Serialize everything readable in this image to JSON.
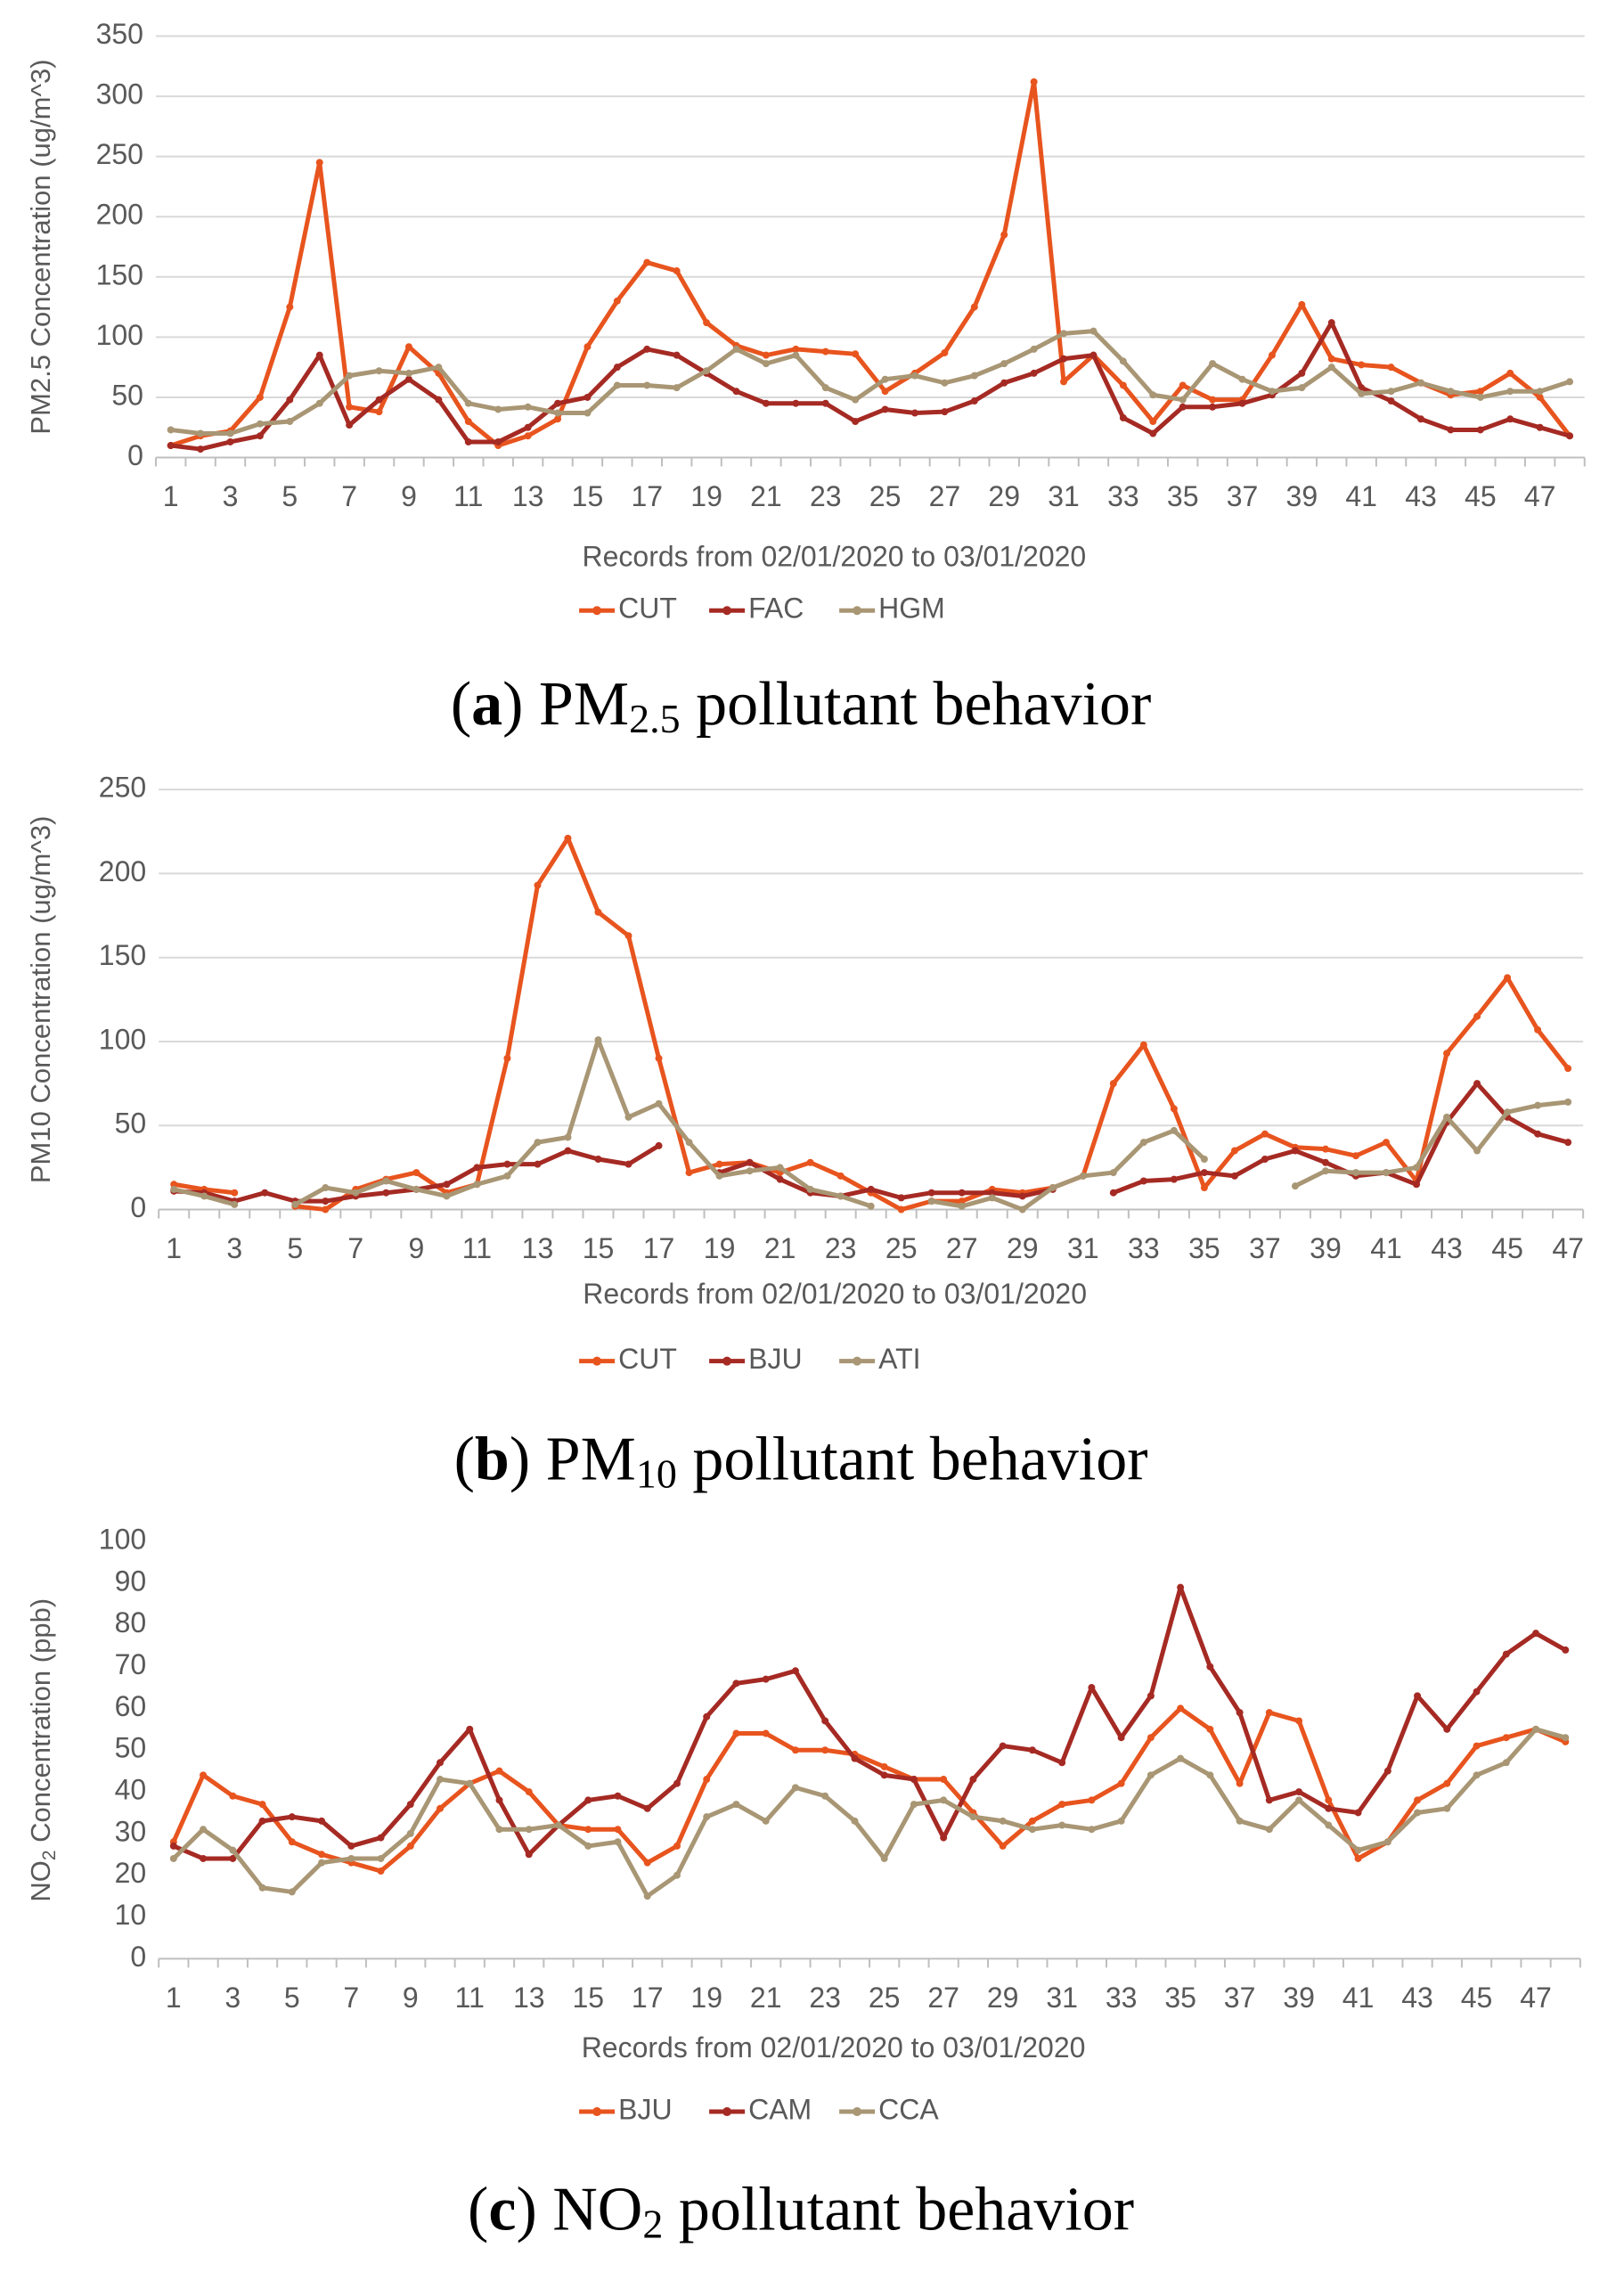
{
  "chart_data": [
    {
      "type": "line",
      "caption": [
        "(",
        "a",
        ") PM",
        "2.5",
        " pollutant behavior"
      ],
      "y_label": [
        "PM2.5 Concentration (ug/m^3)"
      ],
      "x_label": "Records from 02/01/2020 to 03/01/2020",
      "categories": [
        1,
        null,
        3,
        null,
        5,
        null,
        7,
        null,
        9,
        null,
        11,
        null,
        13,
        null,
        15,
        null,
        17,
        null,
        19,
        null,
        21,
        null,
        23,
        null,
        25,
        null,
        27,
        null,
        29,
        null,
        31,
        null,
        33,
        null,
        35,
        null,
        37,
        null,
        39,
        null,
        41,
        null,
        43,
        null,
        45,
        null,
        47,
        null
      ],
      "ylim": [
        0,
        350
      ],
      "yticks": [
        0,
        50,
        100,
        150,
        200,
        250,
        300,
        350
      ],
      "grid": true,
      "series": [
        {
          "name": "CUT",
          "color": "#e8541e",
          "values": [
            10,
            18,
            22,
            50,
            125,
            245,
            42,
            38,
            92,
            70,
            30,
            10,
            18,
            32,
            92,
            130,
            162,
            155,
            112,
            93,
            85,
            90,
            88,
            86,
            55,
            70,
            87,
            125,
            185,
            312,
            63,
            85,
            60,
            30,
            60,
            48,
            48,
            85,
            127,
            82,
            77,
            75,
            62,
            52,
            55,
            70,
            50,
            18
          ]
        },
        {
          "name": "FAC",
          "color": "#a52a23",
          "values": [
            10,
            7,
            13,
            18,
            48,
            85,
            27,
            48,
            65,
            48,
            13,
            13,
            25,
            45,
            50,
            75,
            90,
            85,
            70,
            55,
            45,
            45,
            45,
            30,
            40,
            37,
            38,
            47,
            62,
            70,
            82,
            85,
            33,
            20,
            42,
            42,
            45,
            52,
            70,
            112,
            58,
            47,
            32,
            23,
            23,
            32,
            25,
            18
          ]
        },
        {
          "name": "HGM",
          "color": "#a89674",
          "values": [
            23,
            20,
            20,
            28,
            30,
            45,
            68,
            72,
            70,
            75,
            45,
            40,
            42,
            37,
            37,
            60,
            60,
            58,
            72,
            90,
            78,
            85,
            58,
            48,
            65,
            68,
            62,
            68,
            78,
            90,
            103,
            105,
            80,
            52,
            48,
            78,
            65,
            55,
            58,
            75,
            53,
            55,
            62,
            55,
            50,
            55,
            55,
            63
          ]
        }
      ]
    },
    {
      "type": "line",
      "caption": [
        "(",
        "b",
        ") PM",
        "10",
        " pollutant behavior"
      ],
      "y_label": [
        "PM10 Concentration (ug/m^3)"
      ],
      "x_label": "Records from 02/01/2020 to 03/01/2020",
      "categories": [
        1,
        null,
        3,
        null,
        5,
        null,
        7,
        null,
        9,
        null,
        11,
        null,
        13,
        null,
        15,
        null,
        17,
        null,
        19,
        null,
        21,
        null,
        23,
        null,
        25,
        null,
        27,
        null,
        29,
        null,
        31,
        null,
        33,
        null,
        35,
        null,
        37,
        null,
        39,
        null,
        41,
        null,
        43,
        null,
        45,
        null,
        47
      ],
      "ylim": [
        0,
        250
      ],
      "yticks": [
        0,
        50,
        100,
        150,
        200,
        250
      ],
      "grid": true,
      "series": [
        {
          "name": "CUT",
          "color": "#e8541e",
          "values": [
            15,
            12,
            10,
            null,
            2,
            0,
            12,
            18,
            22,
            10,
            15,
            90,
            193,
            221,
            177,
            163,
            90,
            22,
            27,
            28,
            22,
            28,
            20,
            10,
            0,
            5,
            5,
            12,
            10,
            13,
            20,
            75,
            98,
            60,
            13,
            35,
            45,
            37,
            36,
            32,
            40,
            17,
            93,
            115,
            138,
            107,
            84
          ]
        },
        {
          "name": "BJU",
          "color": "#a52a23",
          "values": [
            11,
            10,
            5,
            10,
            5,
            5,
            8,
            10,
            12,
            15,
            25,
            27,
            27,
            35,
            30,
            27,
            38,
            null,
            22,
            28,
            18,
            10,
            8,
            12,
            7,
            10,
            10,
            10,
            8,
            12,
            null,
            10,
            17,
            18,
            22,
            20,
            30,
            35,
            28,
            20,
            22,
            15,
            52,
            75,
            55,
            45,
            40
          ]
        },
        {
          "name": "ATI",
          "color": "#a89674",
          "values": [
            12,
            8,
            3,
            null,
            3,
            13,
            10,
            17,
            12,
            8,
            15,
            20,
            40,
            43,
            101,
            55,
            63,
            40,
            20,
            23,
            25,
            12,
            8,
            2,
            null,
            5,
            2,
            7,
            0,
            13,
            20,
            22,
            40,
            47,
            30,
            null,
            null,
            14,
            23,
            22,
            22,
            25,
            55,
            35,
            58,
            62,
            64
          ]
        }
      ]
    },
    {
      "type": "line",
      "caption": [
        "(",
        "c",
        ") NO",
        "2",
        " pollutant behavior"
      ],
      "y_label": [
        "NO",
        "2",
        " Concentration (ppb)"
      ],
      "x_label": "Records from 02/01/2020 to 03/01/2020",
      "categories": [
        1,
        null,
        3,
        null,
        5,
        null,
        7,
        null,
        9,
        null,
        11,
        null,
        13,
        null,
        15,
        null,
        17,
        null,
        19,
        null,
        21,
        null,
        23,
        null,
        25,
        null,
        27,
        null,
        29,
        null,
        31,
        null,
        33,
        null,
        35,
        null,
        37,
        null,
        39,
        null,
        41,
        null,
        43,
        null,
        45,
        null,
        47,
        null
      ],
      "ylim": [
        0,
        100
      ],
      "yticks": [
        0,
        10,
        20,
        30,
        40,
        50,
        60,
        70,
        80,
        90,
        100
      ],
      "grid": false,
      "series": [
        {
          "name": "BJU",
          "color": "#e8541e",
          "values": [
            28,
            44,
            39,
            37,
            28,
            25,
            23,
            21,
            27,
            36,
            42,
            45,
            40,
            32,
            31,
            31,
            23,
            27,
            43,
            54,
            54,
            50,
            50,
            49,
            46,
            43,
            43,
            35,
            27,
            33,
            37,
            38,
            42,
            53,
            60,
            55,
            42,
            59,
            57,
            38,
            24,
            28,
            38,
            42,
            51,
            53,
            55,
            52
          ]
        },
        {
          "name": "CAM",
          "color": "#a52a23",
          "values": [
            27,
            24,
            24,
            33,
            34,
            33,
            27,
            29,
            37,
            47,
            55,
            38,
            25,
            32,
            38,
            39,
            36,
            42,
            58,
            66,
            67,
            69,
            57,
            48,
            44,
            43,
            29,
            43,
            51,
            50,
            47,
            65,
            53,
            63,
            89,
            70,
            59,
            38,
            40,
            36,
            35,
            45,
            63,
            55,
            64,
            73,
            78,
            74
          ]
        },
        {
          "name": "CCA",
          "color": "#a89674",
          "values": [
            24,
            31,
            26,
            17,
            16,
            23,
            24,
            24,
            30,
            43,
            42,
            31,
            31,
            32,
            27,
            28,
            15,
            20,
            34,
            37,
            33,
            41,
            39,
            33,
            24,
            37,
            38,
            34,
            33,
            31,
            32,
            31,
            33,
            44,
            48,
            44,
            33,
            31,
            38,
            32,
            26,
            28,
            35,
            36,
            44,
            47,
            55,
            53
          ]
        }
      ]
    }
  ]
}
